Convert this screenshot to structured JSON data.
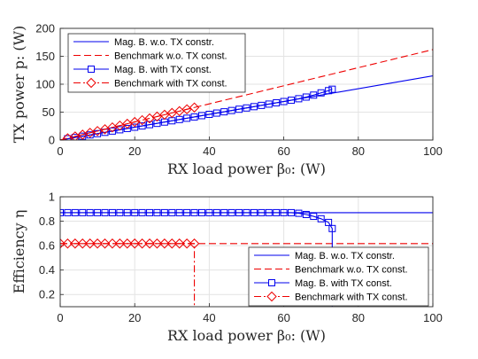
{
  "chart_data": [
    {
      "type": "line",
      "xlabel": "RX load power β₀: (W)",
      "ylabel": "TX power p: (W)",
      "xlim": [
        0,
        100
      ],
      "ylim": [
        0,
        200
      ],
      "xticks": [
        "0",
        "20",
        "40",
        "60",
        "80",
        "100"
      ],
      "yticks": [
        "0",
        "50",
        "100",
        "150",
        "200"
      ],
      "grid": true,
      "legend_position": "top-left",
      "colors": {
        "mag": "#0000ee",
        "bench": "#ee0000"
      },
      "series": [
        {
          "name": "Mag. B. w.o. TX constr.",
          "style": "solid",
          "color": "#0000ee",
          "marker": "none",
          "x": [
            0,
            100
          ],
          "y": [
            0,
            115
          ]
        },
        {
          "name": "Benchmark w.o. TX const.",
          "style": "dashed",
          "color": "#ee0000",
          "marker": "none",
          "x": [
            0,
            100
          ],
          "y": [
            0,
            162
          ]
        },
        {
          "name": "Mag. B. with TX const.",
          "style": "solid",
          "color": "#0000ee",
          "marker": "square",
          "x": [
            0,
            2,
            4,
            6,
            8,
            10,
            12,
            14,
            16,
            18,
            20,
            22,
            24,
            26,
            28,
            30,
            32,
            34,
            36,
            38,
            40,
            42,
            44,
            46,
            48,
            50,
            52,
            54,
            56,
            58,
            60,
            62,
            64,
            66,
            68,
            70,
            72,
            73
          ],
          "y": [
            0,
            2.3,
            4.6,
            6.9,
            9.2,
            11.5,
            13.8,
            16.1,
            18.4,
            20.7,
            23,
            25.3,
            27.6,
            29.9,
            32.2,
            34.5,
            36.8,
            39.1,
            41.4,
            43.7,
            46,
            48.3,
            50.6,
            52.9,
            55.2,
            57.5,
            59.8,
            62.1,
            64.4,
            66.7,
            69,
            71.3,
            74,
            77,
            80.5,
            84.5,
            88.5,
            91
          ]
        },
        {
          "name": "Benchmark with TX const.",
          "style": "dashdot",
          "color": "#ee0000",
          "marker": "diamond",
          "x": [
            0,
            2,
            4,
            6,
            8,
            10,
            12,
            14,
            16,
            18,
            20,
            22,
            24,
            26,
            28,
            30,
            32,
            34,
            36
          ],
          "y": [
            0,
            3.2,
            6.5,
            9.7,
            13,
            16.2,
            19.4,
            22.7,
            25.9,
            29.2,
            32.4,
            35.6,
            38.9,
            42.1,
            45.4,
            48.6,
            51.8,
            55.1,
            58.3
          ]
        }
      ]
    },
    {
      "type": "line",
      "xlabel": "RX load power β₀: (W)",
      "ylabel": "Efficiency η",
      "xlim": [
        0,
        100
      ],
      "ylim": [
        0.1,
        1
      ],
      "xticks": [
        "0",
        "20",
        "40",
        "60",
        "80",
        "100"
      ],
      "yticks": [
        "0.2",
        "0.4",
        "0.6",
        "0.8",
        "1"
      ],
      "grid": true,
      "legend_position": "bottom-right",
      "colors": {
        "mag": "#0000ee",
        "bench": "#ee0000"
      },
      "series": [
        {
          "name": "Mag. B. w.o. TX constr.",
          "style": "solid",
          "color": "#0000ee",
          "marker": "none",
          "x": [
            0,
            100
          ],
          "y": [
            0.87,
            0.87
          ]
        },
        {
          "name": "Benchmark w.o. TX const.",
          "style": "dashed",
          "color": "#ee0000",
          "marker": "none",
          "x": [
            0,
            100
          ],
          "y": [
            0.617,
            0.617
          ]
        },
        {
          "name": "Mag. B. with TX const.",
          "style": "solid",
          "color": "#0000ee",
          "marker": "square",
          "x": [
            0,
            2,
            4,
            6,
            8,
            10,
            12,
            14,
            16,
            18,
            20,
            22,
            24,
            26,
            28,
            30,
            32,
            34,
            36,
            38,
            40,
            42,
            44,
            46,
            48,
            50,
            52,
            54,
            56,
            58,
            60,
            62,
            64,
            66,
            68,
            70,
            72,
            73,
            73
          ],
          "y": [
            0.87,
            0.87,
            0.87,
            0.87,
            0.87,
            0.87,
            0.87,
            0.87,
            0.87,
            0.87,
            0.87,
            0.87,
            0.87,
            0.87,
            0.87,
            0.87,
            0.87,
            0.87,
            0.87,
            0.87,
            0.87,
            0.87,
            0.87,
            0.87,
            0.87,
            0.87,
            0.87,
            0.87,
            0.87,
            0.87,
            0.87,
            0.87,
            0.865,
            0.855,
            0.84,
            0.82,
            0.79,
            0.74,
            0.1
          ]
        },
        {
          "name": "Benchmark with TX const.",
          "style": "dashdot",
          "color": "#ee0000",
          "marker": "diamond",
          "x": [
            0,
            2,
            4,
            6,
            8,
            10,
            12,
            14,
            16,
            18,
            20,
            22,
            24,
            26,
            28,
            30,
            32,
            34,
            36,
            36
          ],
          "y": [
            0.617,
            0.617,
            0.617,
            0.617,
            0.617,
            0.617,
            0.617,
            0.617,
            0.617,
            0.617,
            0.617,
            0.617,
            0.617,
            0.617,
            0.617,
            0.617,
            0.617,
            0.617,
            0.617,
            0.1
          ]
        }
      ]
    }
  ]
}
